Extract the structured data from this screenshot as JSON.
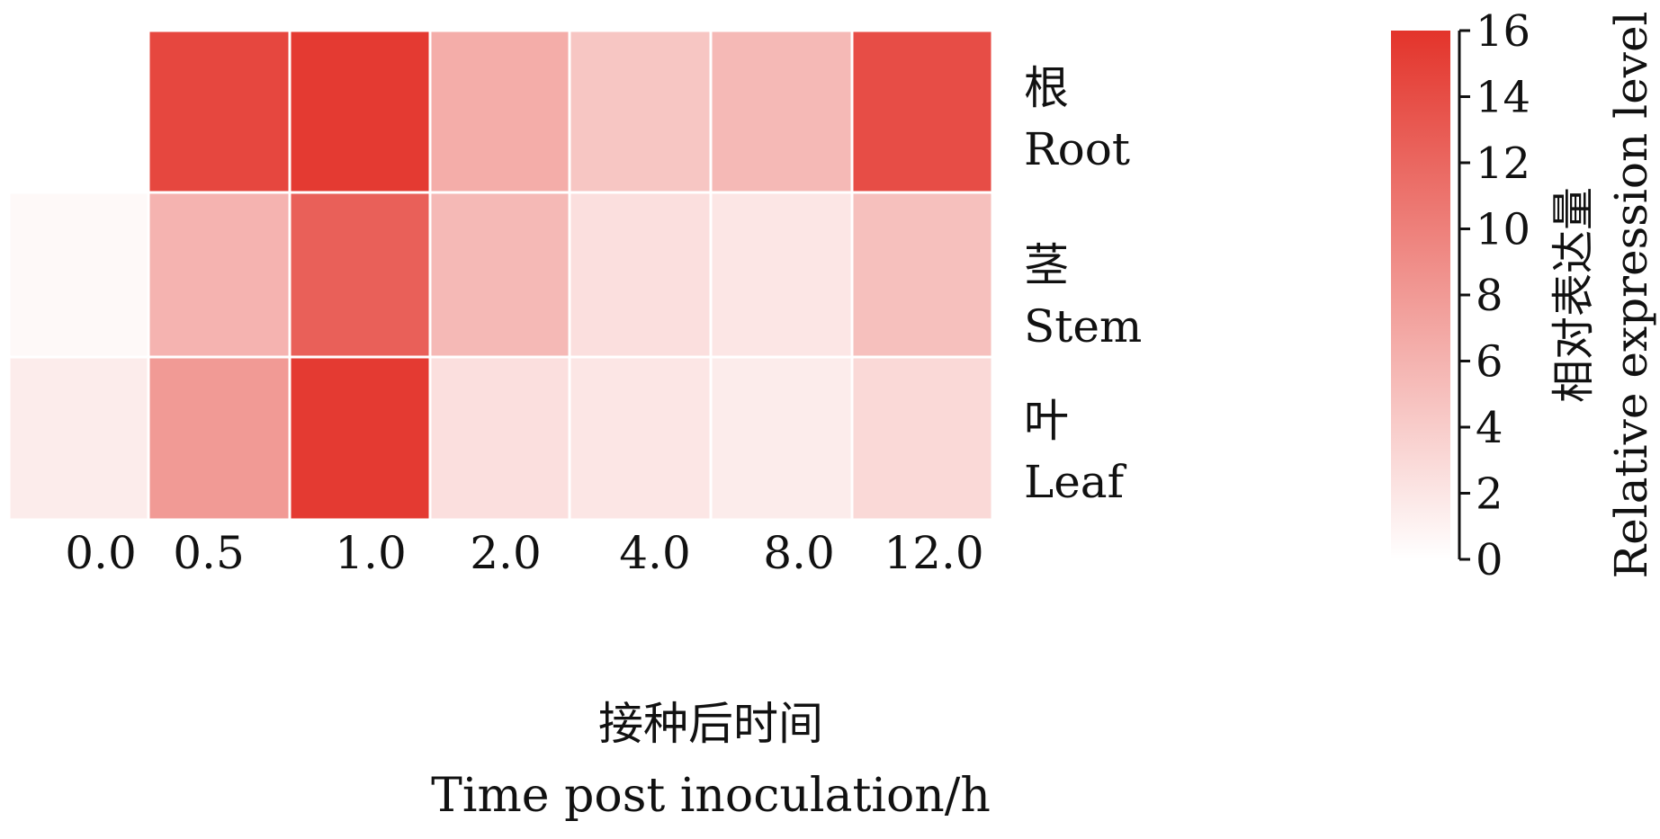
{
  "chart_data": {
    "type": "heatmap",
    "x_categories": [
      "0.0",
      "0.5",
      "1.0",
      "2.0",
      "4.0",
      "8.0",
      "12.0"
    ],
    "rows": [
      {
        "label_cn": "根",
        "label_en": "Root"
      },
      {
        "label_cn": "茎",
        "label_en": "Stem"
      },
      {
        "label_cn": "叶",
        "label_en": "Leaf"
      }
    ],
    "values": [
      [
        null,
        14.5,
        15.5,
        6.5,
        4.5,
        5.5,
        14.0
      ],
      [
        0.5,
        6.0,
        12.5,
        5.5,
        2.5,
        2.0,
        5.0
      ],
      [
        1.5,
        8.0,
        15.5,
        2.5,
        2.0,
        1.5,
        3.0
      ]
    ],
    "xlabel_cn": "接种后时间",
    "xlabel_en": "Time post inoculation/h",
    "colorbar": {
      "min": 0,
      "max": 16,
      "ticks": [
        "16",
        "14",
        "12",
        "10",
        "8",
        "6",
        "4",
        "2",
        "0"
      ],
      "label_cn": "相对表达量",
      "label_en": "Relative expression level",
      "color_low": "#ffffff",
      "color_high": "#e3342b"
    },
    "grid_line_color": "#ffffff"
  }
}
